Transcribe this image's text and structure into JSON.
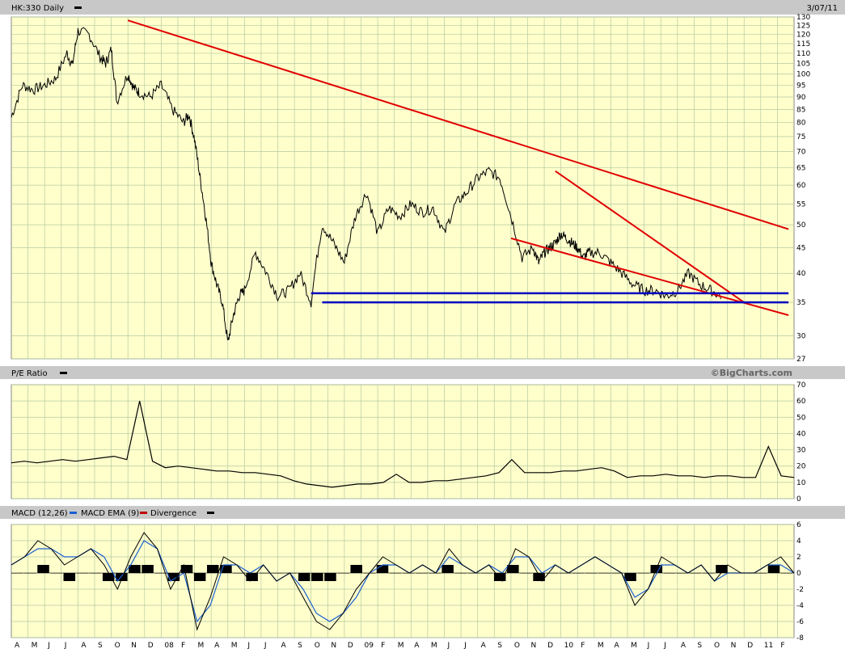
{
  "header": {
    "symbol_label": "HK:330 Daily",
    "date": "3/07/11"
  },
  "watermark": "©BigCharts.com",
  "colors": {
    "plot_bg": "#ffffcc",
    "grid": "#b5c9a0",
    "bar_bg": "#c8c8c8",
    "price": "#000000",
    "trend_red": "#e00000",
    "support_blue": "#0000c0",
    "macd": "#000000",
    "macd_ema": "#1a5fd1",
    "divergence": "#000000"
  },
  "chart_data": [
    {
      "type": "line",
      "title": "HK:330 Daily",
      "scale": "log",
      "ylim": [
        27,
        130
      ],
      "y_ticks": [
        27,
        30,
        35,
        40,
        45,
        50,
        55,
        60,
        65,
        70,
        75,
        80,
        85,
        90,
        95,
        100,
        105,
        110,
        115,
        120,
        125,
        130
      ],
      "x_ticks": [
        "A",
        "M",
        "J",
        "J",
        "A",
        "S",
        "O",
        "N",
        "D",
        "08",
        "F",
        "M",
        "A",
        "M",
        "J",
        "J",
        "A",
        "S",
        "O",
        "N",
        "D",
        "09",
        "F",
        "M",
        "A",
        "M",
        "J",
        "J",
        "A",
        "S",
        "O",
        "N",
        "D",
        "10",
        "F",
        "M",
        "A",
        "M",
        "J",
        "J",
        "A",
        "S",
        "O",
        "N",
        "D",
        "11",
        "F"
      ],
      "series": [
        {
          "name": "HK:330 Daily",
          "x": [
            0,
            2,
            4,
            6,
            8,
            10,
            11,
            12,
            14,
            16,
            17,
            18,
            19,
            21,
            22,
            23,
            25,
            27,
            29,
            31,
            32,
            33,
            34,
            35,
            36,
            37,
            38,
            39,
            40,
            41,
            42,
            44,
            46,
            48,
            50,
            52,
            54,
            56,
            58,
            60,
            62,
            64,
            66,
            68,
            70,
            72,
            74,
            76,
            78,
            80,
            82,
            84,
            86,
            88,
            90,
            92,
            94,
            95,
            96,
            97,
            98,
            99,
            100,
            101,
            102,
            103,
            104,
            106,
            108,
            110,
            112,
            114,
            116,
            118,
            120,
            122,
            124,
            126,
            128
          ],
          "values": [
            82,
            95,
            93,
            95,
            98,
            110,
            104,
            122,
            120,
            108,
            105,
            112,
            88,
            100,
            94,
            92,
            90,
            95,
            85,
            80,
            83,
            74,
            62,
            52,
            42,
            38,
            35,
            29,
            33,
            36,
            37,
            44,
            40,
            36,
            37,
            40,
            35,
            50,
            46,
            42,
            52,
            58,
            48,
            54,
            52,
            55,
            53,
            54,
            48,
            55,
            58,
            62,
            64,
            62,
            52,
            43,
            45,
            42,
            44,
            45,
            46,
            48,
            47,
            46,
            45,
            43,
            44,
            44,
            42,
            40,
            38,
            37,
            37,
            36,
            37,
            40,
            38,
            37,
            36
          ]
        }
      ],
      "annotations": [
        {
          "type": "trendline",
          "color": "red",
          "from": [
            21,
            128
          ],
          "to": [
            140,
            49
          ]
        },
        {
          "type": "trendline",
          "color": "red",
          "from": [
            90,
            47
          ],
          "to": [
            140,
            33
          ]
        },
        {
          "type": "trendline",
          "color": "red",
          "from": [
            98,
            64
          ],
          "to": [
            132,
            35
          ]
        },
        {
          "type": "support",
          "color": "blue",
          "from": [
            54,
            36.5
          ],
          "to": [
            140,
            36.5
          ]
        },
        {
          "type": "support",
          "color": "blue",
          "from": [
            56,
            35
          ],
          "to": [
            140,
            35
          ]
        }
      ]
    },
    {
      "type": "line",
      "title": "P/E Ratio",
      "ylim": [
        0,
        70
      ],
      "y_ticks": [
        0,
        10,
        20,
        30,
        40,
        50,
        60,
        70
      ],
      "series": [
        {
          "name": "P/E Ratio",
          "values": [
            22,
            23,
            22,
            23,
            24,
            23,
            24,
            25,
            26,
            24,
            60,
            23,
            19,
            20,
            19,
            18,
            17,
            17,
            16,
            16,
            15,
            14,
            11,
            9,
            8,
            7,
            8,
            9,
            9,
            10,
            15,
            10,
            10,
            11,
            11,
            12,
            13,
            14,
            16,
            24,
            16,
            16,
            16,
            17,
            17,
            18,
            19,
            17,
            13,
            14,
            14,
            15,
            14,
            14,
            13,
            14,
            14,
            13,
            13,
            32,
            14,
            13
          ]
        }
      ]
    },
    {
      "type": "line",
      "title": "MACD (12,26)",
      "ylim": [
        -8,
        6
      ],
      "y_ticks": [
        -8,
        -6,
        -4,
        -2,
        0,
        2,
        4,
        6
      ],
      "series": [
        {
          "name": "MACD (12,26)",
          "values": [
            1,
            2,
            4,
            3,
            1,
            2,
            3,
            1,
            -2,
            2,
            5,
            3,
            -2,
            1,
            -7,
            -3,
            2,
            1,
            -1,
            1,
            -1,
            0,
            -3,
            -6,
            -7,
            -5,
            -2,
            0,
            2,
            1,
            0,
            1,
            0,
            3,
            1,
            0,
            1,
            -1,
            3,
            2,
            -1,
            1,
            0,
            1,
            2,
            1,
            0,
            -4,
            -2,
            2,
            1,
            0,
            1,
            -1,
            1,
            0,
            0,
            1,
            2,
            0
          ]
        },
        {
          "name": "MACD EMA (9)",
          "values": [
            1,
            2,
            3,
            3,
            2,
            2,
            3,
            2,
            -1,
            1,
            4,
            3,
            -1,
            0,
            -6,
            -4,
            1,
            1,
            0,
            1,
            -1,
            0,
            -2,
            -5,
            -6,
            -5,
            -3,
            0,
            1,
            1,
            0,
            1,
            0,
            2,
            1,
            0,
            1,
            0,
            2,
            2,
            0,
            1,
            0,
            1,
            2,
            1,
            0,
            -3,
            -2,
            1,
            1,
            0,
            1,
            -1,
            0,
            0,
            0,
            1,
            1,
            0
          ]
        },
        {
          "name": "Divergence",
          "values": [
            0,
            0,
            1,
            0,
            -1,
            0,
            0,
            -1,
            -1,
            1,
            1,
            0,
            -1,
            1,
            -1,
            1,
            1,
            0,
            -1,
            0,
            0,
            0,
            -1,
            -1,
            -1,
            0,
            1,
            0,
            1,
            0,
            0,
            0,
            0,
            1,
            0,
            0,
            0,
            -1,
            1,
            0,
            -1,
            0,
            0,
            0,
            0,
            0,
            0,
            -1,
            0,
            1,
            0,
            0,
            0,
            0,
            1,
            0,
            0,
            0,
            1,
            0
          ]
        }
      ]
    }
  ]
}
